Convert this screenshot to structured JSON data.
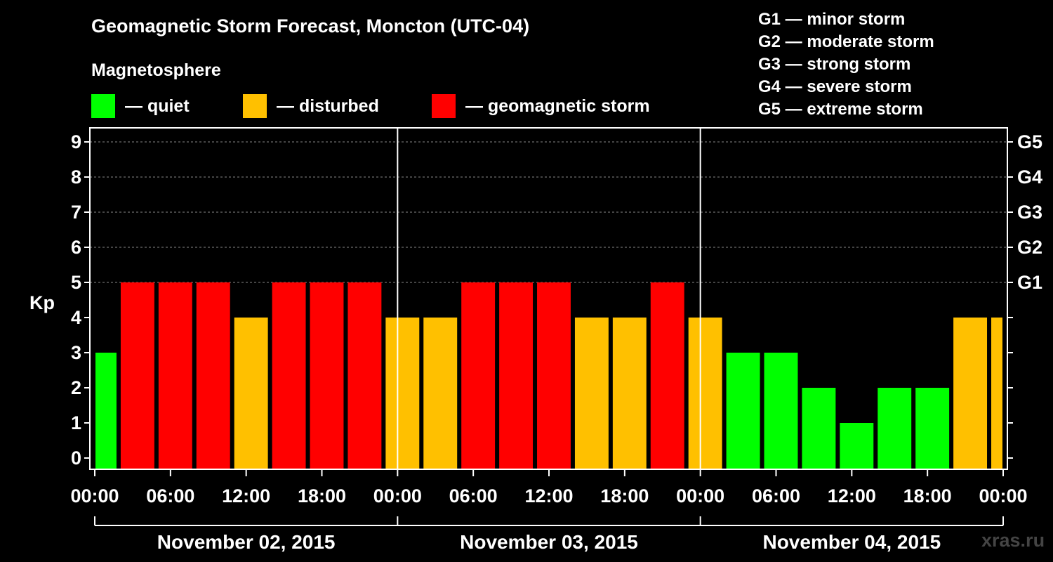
{
  "header": {
    "title": "Geomagnetic Storm Forecast, Moncton (UTC-04)",
    "subtitle": "Magnetosphere"
  },
  "legend": [
    {
      "label": "— quiet",
      "color": "#00ff00"
    },
    {
      "label": "— disturbed",
      "color": "#ffc000"
    },
    {
      "label": "— geomagnetic storm",
      "color": "#ff0000"
    }
  ],
  "g_scale_legend": [
    "G1 — minor storm",
    "G2 — moderate storm",
    "G3 — strong storm",
    "G4 — severe storm",
    "G5 — extreme storm"
  ],
  "watermark": "xras.ru",
  "colors": {
    "quiet": "#00ff00",
    "disturbed": "#ffc000",
    "storm": "#ff0000",
    "background": "#000000",
    "axis": "#ffffff",
    "grid": "#888888"
  },
  "chart_data": {
    "type": "bar",
    "ylabel": "Kp",
    "ylim": [
      0,
      9
    ],
    "yticks": [
      "0",
      "1",
      "2",
      "3",
      "4",
      "5",
      "6",
      "7",
      "8",
      "9"
    ],
    "right_ticks": [
      {
        "kp": 5,
        "label": "G1"
      },
      {
        "kp": 6,
        "label": "G2"
      },
      {
        "kp": 7,
        "label": "G3"
      },
      {
        "kp": 8,
        "label": "G4"
      },
      {
        "kp": 9,
        "label": "G5"
      }
    ],
    "x_range_hours": [
      0,
      72
    ],
    "xtick_labels": [
      "00:00",
      "06:00",
      "12:00",
      "18:00",
      "00:00",
      "06:00",
      "12:00",
      "18:00",
      "00:00",
      "06:00",
      "12:00",
      "18:00",
      "00:00"
    ],
    "day_labels": [
      "November 02, 2015",
      "November 03, 2015",
      "November 04, 2015"
    ],
    "bars": [
      {
        "start_hour": 0,
        "end_hour": 2,
        "kp": 3,
        "level": "quiet"
      },
      {
        "start_hour": 2,
        "end_hour": 5,
        "kp": 5,
        "level": "storm"
      },
      {
        "start_hour": 5,
        "end_hour": 8,
        "kp": 5,
        "level": "storm"
      },
      {
        "start_hour": 8,
        "end_hour": 11,
        "kp": 5,
        "level": "storm"
      },
      {
        "start_hour": 11,
        "end_hour": 14,
        "kp": 4,
        "level": "disturbed"
      },
      {
        "start_hour": 14,
        "end_hour": 17,
        "kp": 5,
        "level": "storm"
      },
      {
        "start_hour": 17,
        "end_hour": 20,
        "kp": 5,
        "level": "storm"
      },
      {
        "start_hour": 20,
        "end_hour": 23,
        "kp": 5,
        "level": "storm"
      },
      {
        "start_hour": 23,
        "end_hour": 26,
        "kp": 4,
        "level": "disturbed"
      },
      {
        "start_hour": 26,
        "end_hour": 29,
        "kp": 4,
        "level": "disturbed"
      },
      {
        "start_hour": 29,
        "end_hour": 32,
        "kp": 5,
        "level": "storm"
      },
      {
        "start_hour": 32,
        "end_hour": 35,
        "kp": 5,
        "level": "storm"
      },
      {
        "start_hour": 35,
        "end_hour": 38,
        "kp": 5,
        "level": "storm"
      },
      {
        "start_hour": 38,
        "end_hour": 41,
        "kp": 4,
        "level": "disturbed"
      },
      {
        "start_hour": 41,
        "end_hour": 44,
        "kp": 4,
        "level": "disturbed"
      },
      {
        "start_hour": 44,
        "end_hour": 47,
        "kp": 5,
        "level": "storm"
      },
      {
        "start_hour": 47,
        "end_hour": 50,
        "kp": 4,
        "level": "disturbed"
      },
      {
        "start_hour": 50,
        "end_hour": 53,
        "kp": 3,
        "level": "quiet"
      },
      {
        "start_hour": 53,
        "end_hour": 56,
        "kp": 3,
        "level": "quiet"
      },
      {
        "start_hour": 56,
        "end_hour": 59,
        "kp": 2,
        "level": "quiet"
      },
      {
        "start_hour": 59,
        "end_hour": 62,
        "kp": 1,
        "level": "quiet"
      },
      {
        "start_hour": 62,
        "end_hour": 65,
        "kp": 2,
        "level": "quiet"
      },
      {
        "start_hour": 65,
        "end_hour": 68,
        "kp": 2,
        "level": "quiet"
      },
      {
        "start_hour": 68,
        "end_hour": 71,
        "kp": 4,
        "level": "disturbed"
      },
      {
        "start_hour": 71,
        "end_hour": 72,
        "kp": 4,
        "level": "disturbed"
      }
    ]
  }
}
